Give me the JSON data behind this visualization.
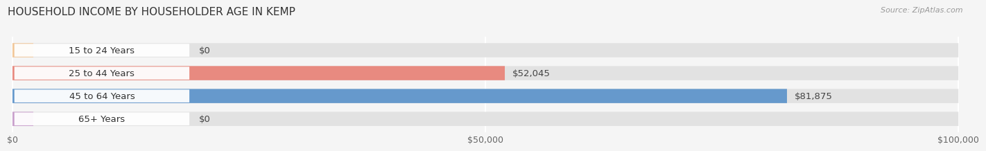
{
  "title": "HOUSEHOLD INCOME BY HOUSEHOLDER AGE IN KEMP",
  "source": "Source: ZipAtlas.com",
  "categories": [
    "15 to 24 Years",
    "25 to 44 Years",
    "45 to 64 Years",
    "65+ Years"
  ],
  "values": [
    0,
    52045,
    81875,
    0
  ],
  "bar_colors": [
    "#f2c89a",
    "#e88a80",
    "#6699cc",
    "#c9a0cc"
  ],
  "background_color": "#f5f5f5",
  "bar_bg_color": "#e2e2e2",
  "xlim": [
    0,
    100000
  ],
  "xticks": [
    0,
    50000,
    100000
  ],
  "xtick_labels": [
    "$0",
    "$50,000",
    "$100,000"
  ],
  "value_labels": [
    "$0",
    "$52,045",
    "$81,875",
    "$0"
  ],
  "title_fontsize": 11,
  "label_fontsize": 9.5,
  "tick_fontsize": 9
}
